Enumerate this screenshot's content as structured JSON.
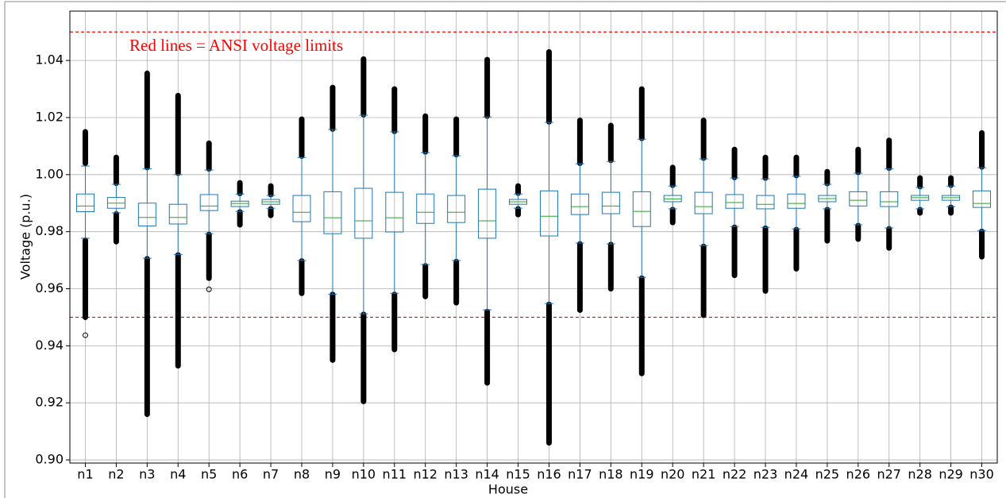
{
  "chart_data": {
    "type": "box",
    "xlabel": "House",
    "ylabel": "Voltage (p.u.)",
    "annotation": "Red lines = ANSI voltage limits",
    "categories": [
      "n1",
      "n2",
      "n3",
      "n4",
      "n5",
      "n6",
      "n7",
      "n8",
      "n9",
      "n10",
      "n11",
      "n12",
      "n13",
      "n14",
      "n15",
      "n16",
      "n17",
      "n18",
      "n19",
      "n20",
      "n21",
      "n22",
      "n23",
      "n24",
      "n25",
      "n26",
      "n27",
      "n28",
      "n29",
      "n30"
    ],
    "ylim": [
      0.8989,
      1.0573
    ],
    "yticks": [
      {
        "value": 0.9,
        "label": "0.90"
      },
      0.92,
      0.94,
      0.96,
      0.98,
      {
        "value": 1,
        "label": "1.00"
      },
      1.02,
      1.04
    ],
    "grid": true,
    "box_color": "#1f77b4",
    "median_color": "#2ca02c",
    "outlier_color": "#000000",
    "reference_lines": [
      0.95,
      1.05
    ],
    "reference_color": "#ff0000",
    "boxes": [
      {
        "whisker_low": 0.9777,
        "q1": 0.987,
        "median": 0.989,
        "q3": 0.9932,
        "whisker_high": 1.003,
        "outliers": [
          [
            0.9437,
            0.9437
          ],
          [
            0.95,
            0.977
          ],
          [
            1.004,
            1.015
          ]
        ]
      },
      {
        "whisker_low": 0.9866,
        "q1": 0.9882,
        "median": 0.99,
        "q3": 0.992,
        "whisker_high": 0.9966,
        "outliers": [
          [
            0.9765,
            0.9862
          ],
          [
            0.997,
            1.006
          ]
        ]
      },
      {
        "whisker_low": 0.9707,
        "q1": 0.982,
        "median": 0.985,
        "q3": 0.99,
        "whisker_high": 1.002,
        "outliers": [
          [
            0.916,
            0.9705
          ],
          [
            1.0025,
            1.0355
          ]
        ]
      },
      {
        "whisker_low": 0.972,
        "q1": 0.9827,
        "median": 0.985,
        "q3": 0.9896,
        "whisker_high": 1.0,
        "outliers": [
          [
            0.933,
            0.9718
          ],
          [
            1.0005,
            1.0277
          ]
        ]
      },
      {
        "whisker_low": 0.9793,
        "q1": 0.9874,
        "median": 0.989,
        "q3": 0.993,
        "whisker_high": 1.0016,
        "outliers": [
          [
            0.9598,
            0.9598
          ],
          [
            0.9637,
            0.979
          ],
          [
            1.002,
            1.011
          ]
        ]
      },
      {
        "whisker_low": 0.9871,
        "q1": 0.9888,
        "median": 0.9899,
        "q3": 0.9907,
        "whisker_high": 0.9932,
        "outliers": [
          [
            0.9824,
            0.9869
          ],
          [
            0.9934,
            0.9971
          ]
        ]
      },
      {
        "whisker_low": 0.9882,
        "q1": 0.9896,
        "median": 0.9905,
        "q3": 0.9913,
        "whisker_high": 0.9927,
        "outliers": [
          [
            0.9857,
            0.988
          ],
          [
            0.993,
            0.996
          ]
        ]
      },
      {
        "whisker_low": 0.9699,
        "q1": 0.9835,
        "median": 0.9868,
        "q3": 0.9927,
        "whisker_high": 1.006,
        "outliers": [
          [
            0.9584,
            0.9697
          ],
          [
            1.0065,
            1.0194
          ]
        ]
      },
      {
        "whisker_low": 0.9581,
        "q1": 0.9793,
        "median": 0.9849,
        "q3": 0.994,
        "whisker_high": 1.0158,
        "outliers": [
          [
            0.935,
            0.958
          ],
          [
            1.016,
            1.0305
          ]
        ]
      },
      {
        "whisker_low": 0.9512,
        "q1": 0.9777,
        "median": 0.9838,
        "q3": 0.9952,
        "whisker_high": 1.0208,
        "outliers": [
          [
            0.9205,
            0.951
          ],
          [
            1.021,
            1.0405
          ]
        ]
      },
      {
        "whisker_low": 0.9584,
        "q1": 0.9799,
        "median": 0.9849,
        "q3": 0.9938,
        "whisker_high": 1.015,
        "outliers": [
          [
            0.9387,
            0.958
          ],
          [
            1.0152,
            1.03
          ]
        ]
      },
      {
        "whisker_low": 0.9685,
        "q1": 0.9829,
        "median": 0.9868,
        "q3": 0.9932,
        "whisker_high": 1.0077,
        "outliers": [
          [
            0.9573,
            0.968
          ],
          [
            1.008,
            1.0205
          ]
        ]
      },
      {
        "whisker_low": 0.9699,
        "q1": 0.9832,
        "median": 0.9868,
        "q3": 0.9927,
        "whisker_high": 1.0066,
        "outliers": [
          [
            0.9551,
            0.9695
          ],
          [
            1.007,
            1.0194
          ]
        ]
      },
      {
        "whisker_low": 0.9526,
        "q1": 0.9777,
        "median": 0.9838,
        "q3": 0.9949,
        "whisker_high": 1.0202,
        "outliers": [
          [
            0.927,
            0.952
          ],
          [
            1.0205,
            1.0403
          ]
        ]
      },
      {
        "whisker_low": 0.9882,
        "q1": 0.9896,
        "median": 0.9905,
        "q3": 0.9913,
        "whisker_high": 0.9932,
        "outliers": [
          [
            0.986,
            0.988
          ],
          [
            0.9935,
            0.996
          ]
        ]
      },
      {
        "whisker_low": 0.9548,
        "q1": 0.9785,
        "median": 0.9854,
        "q3": 0.9943,
        "whisker_high": 1.0183,
        "outliers": [
          [
            0.906,
            0.9545
          ],
          [
            1.0185,
            1.043
          ]
        ]
      },
      {
        "whisker_low": 0.976,
        "q1": 0.986,
        "median": 0.9888,
        "q3": 0.9932,
        "whisker_high": 1.0038,
        "outliers": [
          [
            0.9525,
            0.9757
          ],
          [
            1.004,
            1.019
          ]
        ]
      },
      {
        "whisker_low": 0.9757,
        "q1": 0.9863,
        "median": 0.989,
        "q3": 0.9938,
        "whisker_high": 1.0046,
        "outliers": [
          [
            0.96,
            0.9755
          ],
          [
            1.005,
            1.0172
          ]
        ]
      },
      {
        "whisker_low": 0.964,
        "q1": 0.9818,
        "median": 0.9871,
        "q3": 0.994,
        "whisker_high": 1.0124,
        "outliers": [
          [
            0.9303,
            0.9637
          ],
          [
            1.0127,
            1.03
          ]
        ]
      },
      {
        "whisker_low": 0.988,
        "q1": 0.9905,
        "median": 0.9915,
        "q3": 0.9927,
        "whisker_high": 0.996,
        "outliers": [
          [
            0.9832,
            0.9877
          ],
          [
            0.9963,
            1.0025
          ]
        ]
      },
      {
        "whisker_low": 0.9751,
        "q1": 0.9863,
        "median": 0.9888,
        "q3": 0.9938,
        "whisker_high": 1.0055,
        "outliers": [
          [
            0.9507,
            0.9748
          ],
          [
            1.0058,
            1.019
          ]
        ]
      },
      {
        "whisker_low": 0.9818,
        "q1": 0.9882,
        "median": 0.9902,
        "q3": 0.993,
        "whisker_high": 0.9988,
        "outliers": [
          [
            0.9647,
            0.9815
          ],
          [
            0.999,
            1.0088
          ]
        ]
      },
      {
        "whisker_low": 0.9815,
        "q1": 0.988,
        "median": 0.9896,
        "q3": 0.9927,
        "whisker_high": 0.9985,
        "outliers": [
          [
            0.9592,
            0.9812
          ],
          [
            0.9988,
            1.006
          ]
        ]
      },
      {
        "whisker_low": 0.981,
        "q1": 0.9882,
        "median": 0.9899,
        "q3": 0.9932,
        "whisker_high": 0.9994,
        "outliers": [
          [
            0.967,
            0.9807
          ],
          [
            0.9997,
            1.006
          ]
        ]
      },
      {
        "whisker_low": 0.988,
        "q1": 0.9905,
        "median": 0.9916,
        "q3": 0.9927,
        "whisker_high": 0.9966,
        "outliers": [
          [
            0.9768,
            0.9877
          ],
          [
            0.9969,
            1.001
          ]
        ]
      },
      {
        "whisker_low": 0.9824,
        "q1": 0.989,
        "median": 0.991,
        "q3": 0.994,
        "whisker_high": 1.0005,
        "outliers": [
          [
            0.9774,
            0.9821
          ],
          [
            1.0008,
            1.0088
          ]
        ]
      },
      {
        "whisker_low": 0.9813,
        "q1": 0.9888,
        "median": 0.9905,
        "q3": 0.994,
        "whisker_high": 1.002,
        "outliers": [
          [
            0.9743,
            0.981
          ],
          [
            1.0023,
            1.012
          ]
        ]
      },
      {
        "whisker_low": 0.988,
        "q1": 0.991,
        "median": 0.9919,
        "q3": 0.9927,
        "whisker_high": 0.9955,
        "outliers": [
          [
            0.9866,
            0.9877
          ],
          [
            0.9958,
            0.9988
          ]
        ]
      },
      {
        "whisker_low": 0.9888,
        "q1": 0.991,
        "median": 0.9919,
        "q3": 0.9927,
        "whisker_high": 0.996,
        "outliers": [
          [
            0.9866,
            0.9885
          ],
          [
            0.9963,
            0.9988
          ]
        ]
      },
      {
        "whisker_low": 0.9804,
        "q1": 0.9885,
        "median": 0.9899,
        "q3": 0.9943,
        "whisker_high": 1.0024,
        "outliers": [
          [
            0.9712,
            0.9801
          ],
          [
            1.0027,
            1.0146
          ]
        ]
      }
    ]
  }
}
